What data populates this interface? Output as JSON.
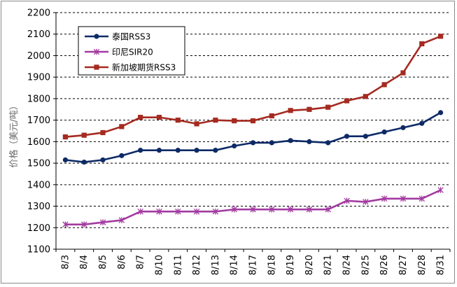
{
  "chart_data": {
    "type": "line",
    "title": "",
    "xlabel": "",
    "ylabel": "价格（美元/吨）",
    "ylim": [
      1100,
      2200
    ],
    "yticks": [
      1100,
      1200,
      1300,
      1400,
      1500,
      1600,
      1700,
      1800,
      1900,
      2000,
      2100,
      2200
    ],
    "grid": "horizontal-dashed",
    "legend_position": "top-left",
    "categories": [
      "8/3",
      "8/4",
      "8/5",
      "8/6",
      "8/7",
      "8/10",
      "8/11",
      "8/12",
      "8/13",
      "8/14",
      "8/17",
      "8/18",
      "8/19",
      "8/20",
      "8/21",
      "8/24",
      "8/25",
      "8/26",
      "8/27",
      "8/28",
      "8/31"
    ],
    "series": [
      {
        "name": "泰国RSS3",
        "color": "#0d2a66",
        "marker": "circle",
        "values": [
          1515,
          1505,
          1515,
          1535,
          1560,
          1560,
          1560,
          1560,
          1560,
          1580,
          1595,
          1595,
          1605,
          1600,
          1595,
          1625,
          1625,
          1645,
          1665,
          1685,
          1735
        ]
      },
      {
        "name": "印尼SIR20",
        "color": "#a23aa0",
        "marker": "star",
        "values": [
          1215,
          1215,
          1225,
          1235,
          1275,
          1275,
          1275,
          1275,
          1275,
          1285,
          1285,
          1285,
          1285,
          1285,
          1285,
          1325,
          1320,
          1335,
          1335,
          1335,
          1375
        ]
      },
      {
        "name": "新加坡期货RSS3",
        "color": "#a52a20",
        "marker": "square",
        "values": [
          1622,
          1630,
          1642,
          1670,
          1713,
          1713,
          1700,
          1683,
          1700,
          1697,
          1697,
          1720,
          1745,
          1750,
          1760,
          1790,
          1810,
          1865,
          1920,
          2055,
          2090
        ]
      }
    ]
  }
}
